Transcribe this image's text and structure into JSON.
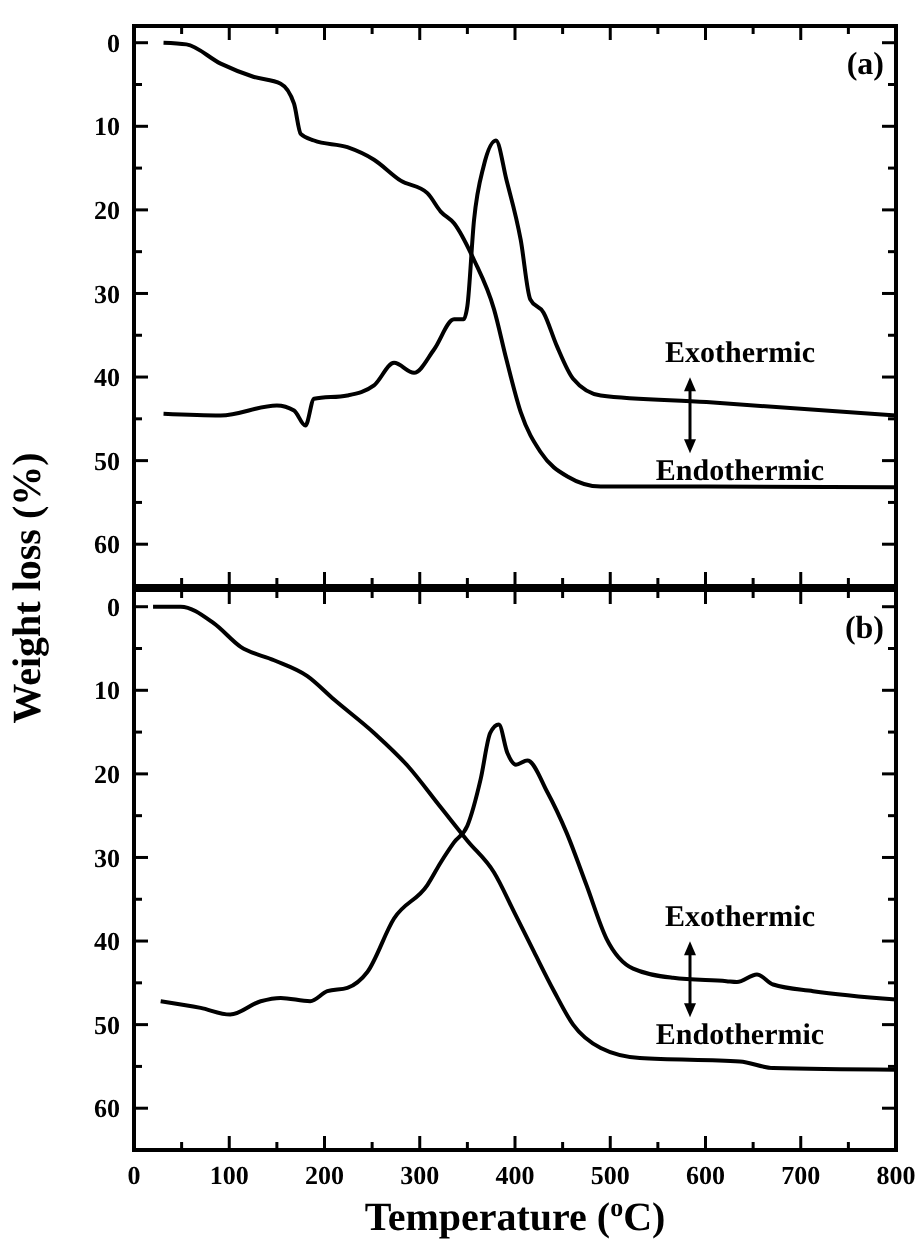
{
  "chart_data": [
    {
      "type": "line",
      "annotations": [
        "(a)",
        "Exothermic",
        "Endothermic"
      ],
      "ylabel": "Weight loss (%)",
      "xlim": [
        0,
        800
      ],
      "ylim": [
        65,
        -2
      ],
      "xticks": [
        0,
        {
          "value": 50,
          "label": null
        },
        100,
        {
          "value": 150,
          "label": null
        },
        200,
        {
          "value": 250,
          "label": null
        },
        300,
        {
          "value": 350,
          "label": null
        },
        400,
        {
          "value": 450,
          "label": null
        },
        500,
        {
          "value": 550,
          "label": null
        },
        600,
        {
          "value": 650,
          "label": null
        },
        700,
        {
          "value": 750,
          "label": null
        },
        800
      ],
      "yticks": [
        0,
        {
          "value": 5,
          "label": null
        },
        10,
        {
          "value": 15,
          "label": null
        },
        20,
        {
          "value": 25,
          "label": null
        },
        30,
        {
          "value": 35,
          "label": null
        },
        40,
        {
          "value": 45,
          "label": null
        },
        50,
        {
          "value": 55,
          "label": null
        },
        60
      ],
      "tick_labels": "y",
      "grid": false,
      "marker": "none",
      "line_style": "solid",
      "series": [
        {
          "color": "#000000",
          "x": [
            31,
            55,
            91,
            126,
            154,
            168,
            175,
            189,
            224,
            252,
            280,
            308,
            322,
            336,
            357,
            378,
            391,
            406,
            427,
            455,
            490,
            600,
            800
          ],
          "values": [
            0,
            0.2,
            2.5,
            4.1,
            4.9,
            7.3,
            10.9,
            11.7,
            12.5,
            14,
            16.5,
            18,
            20.2,
            21.6,
            26,
            31.9,
            37.9,
            44.2,
            49,
            51.9,
            53.1,
            53.1,
            53.2
          ]
        },
        {
          "color": "#000000",
          "x": [
            31,
            91,
            150,
            168,
            180,
            189,
            224,
            252,
            273,
            294,
            315,
            336,
            346,
            350,
            357,
            367,
            380,
            391,
            406,
            416,
            430,
            444,
            461,
            490,
            601,
            800
          ],
          "values": [
            44.4,
            44.6,
            43.4,
            44,
            45.8,
            42.6,
            42.2,
            41,
            38.3,
            39.5,
            36.7,
            33.1,
            33.1,
            31.5,
            21.2,
            14.8,
            11.7,
            16.4,
            23.6,
            30.7,
            32.3,
            36.3,
            40.2,
            42.2,
            43,
            44.6
          ]
        }
      ]
    },
    {
      "type": "line",
      "annotations": [
        "(b)",
        "Exothermic",
        "Endothermic"
      ],
      "xlabel": "Temperature ($^{o}$C)",
      "xlim": [
        0,
        800
      ],
      "ylim": [
        65,
        -2
      ],
      "xticks": [
        0,
        {
          "value": 50,
          "label": null
        },
        100,
        {
          "value": 150,
          "label": null
        },
        200,
        {
          "value": 250,
          "label": null
        },
        300,
        {
          "value": 350,
          "label": null
        },
        400,
        {
          "value": 450,
          "label": null
        },
        500,
        {
          "value": 550,
          "label": null
        },
        600,
        {
          "value": 650,
          "label": null
        },
        700,
        {
          "value": 750,
          "label": null
        },
        800
      ],
      "yticks": [
        0,
        {
          "value": 5,
          "label": null
        },
        10,
        {
          "value": 15,
          "label": null
        },
        20,
        {
          "value": 25,
          "label": null
        },
        30,
        {
          "value": 35,
          "label": null
        },
        40,
        {
          "value": 45,
          "label": null
        },
        50,
        {
          "value": 55,
          "label": null
        },
        60
      ],
      "grid": false,
      "marker": "none",
      "line_style": "solid",
      "series": [
        {
          "color": "#000000",
          "x": [
            20,
            49,
            84,
            112,
            147,
            182,
            210,
            252,
            287,
            322,
            350,
            378,
            399,
            420,
            441,
            461,
            490,
            531,
            636,
            671,
            800
          ],
          "values": [
            0,
            0,
            2,
            4.8,
            6.4,
            8.3,
            11.1,
            15.1,
            19,
            24,
            28,
            31.8,
            36.5,
            41.3,
            46,
            50,
            52.8,
            54,
            54.4,
            55.2,
            55.4
          ]
        },
        {
          "color": "#000000",
          "x": [
            28,
            70,
            101,
            133,
            154,
            185,
            203,
            224,
            245,
            273,
            308,
            322,
            336,
            350,
            364,
            374,
            383,
            392,
            401,
            413,
            434,
            454,
            475,
            496,
            524,
            566,
            622,
            633,
            654,
            671,
            713,
            800
          ],
          "values": [
            47.2,
            48,
            48.8,
            47.2,
            46.8,
            47.2,
            46,
            45.6,
            43.7,
            37.3,
            33.3,
            30.6,
            28.2,
            26.2,
            20.6,
            15.1,
            14.1,
            17.5,
            18.9,
            18.4,
            22.2,
            27,
            33.3,
            39.7,
            43.3,
            44.4,
            44.8,
            44.9,
            44,
            45.2,
            46,
            47
          ]
        }
      ]
    }
  ]
}
